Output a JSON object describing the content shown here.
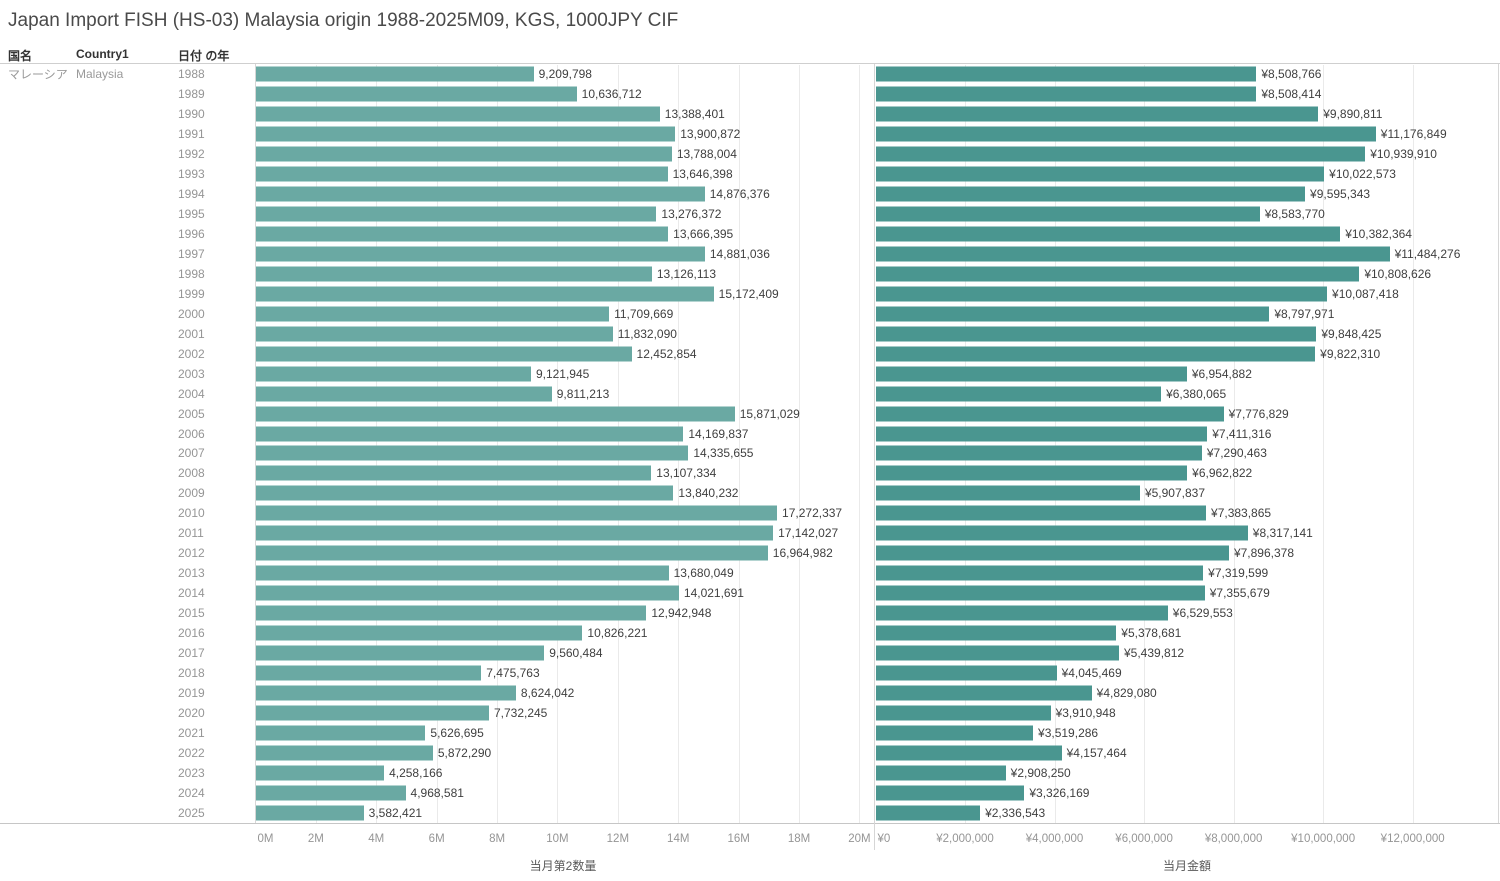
{
  "title": "Japan Import FISH (HS-03) Malaysia origin 1988-2025M09, KGS, 1000JPY CIF",
  "columns": {
    "country_jp": "国名",
    "country_en": "Country1",
    "year": "日付 の年"
  },
  "row_header": {
    "country_jp": "マレーシア",
    "country_en": "Malaysia"
  },
  "chart_data": {
    "type": "bar",
    "orientation": "horizontal",
    "grid": true,
    "categories": [
      "1988",
      "1989",
      "1990",
      "1991",
      "1992",
      "1993",
      "1994",
      "1995",
      "1996",
      "1997",
      "1998",
      "1999",
      "2000",
      "2001",
      "2002",
      "2003",
      "2004",
      "2005",
      "2006",
      "2007",
      "2008",
      "2009",
      "2010",
      "2011",
      "2012",
      "2013",
      "2014",
      "2015",
      "2016",
      "2017",
      "2018",
      "2019",
      "2020",
      "2021",
      "2022",
      "2023",
      "2024",
      "2025"
    ],
    "series": [
      {
        "name": "quantity",
        "axis_title": "当月第2数量",
        "value_prefix": "",
        "bar_color": "#6AA9A3",
        "xlim": [
          0,
          20400000
        ],
        "ticks": [
          {
            "value": 0,
            "label": "0M"
          },
          {
            "value": 2000000,
            "label": "2M"
          },
          {
            "value": 4000000,
            "label": "4M"
          },
          {
            "value": 6000000,
            "label": "6M"
          },
          {
            "value": 8000000,
            "label": "8M"
          },
          {
            "value": 10000000,
            "label": "10M"
          },
          {
            "value": 12000000,
            "label": "12M"
          },
          {
            "value": 14000000,
            "label": "14M"
          },
          {
            "value": 16000000,
            "label": "16M"
          },
          {
            "value": 18000000,
            "label": "18M"
          },
          {
            "value": 20000000,
            "label": "20M"
          }
        ],
        "values": [
          9209798,
          10636712,
          13388401,
          13900872,
          13788004,
          13646398,
          14876376,
          13276372,
          13666395,
          14881036,
          13126113,
          15172409,
          11709669,
          11832090,
          12452854,
          9121945,
          9811213,
          15871029,
          14169837,
          14335655,
          13107334,
          13840232,
          17272337,
          17142027,
          16964982,
          13680049,
          14021691,
          12942948,
          10826221,
          9560484,
          7475763,
          8624042,
          7732245,
          5626695,
          5872290,
          4258166,
          4968581,
          3582421
        ]
      },
      {
        "name": "amount",
        "axis_title": "当月金額",
        "value_prefix": "¥",
        "bar_color": "#4A9690",
        "xlim": [
          0,
          13940000
        ],
        "ticks": [
          {
            "value": 0,
            "label": "¥0"
          },
          {
            "value": 2000000,
            "label": "¥2,000,000"
          },
          {
            "value": 4000000,
            "label": "¥4,000,000"
          },
          {
            "value": 6000000,
            "label": "¥6,000,000"
          },
          {
            "value": 8000000,
            "label": "¥8,000,000"
          },
          {
            "value": 10000000,
            "label": "¥10,000,000"
          },
          {
            "value": 12000000,
            "label": "¥12,000,000"
          }
        ],
        "values": [
          8508766,
          8508414,
          9890811,
          11176849,
          10939910,
          10022573,
          9595343,
          8583770,
          10382364,
          11484276,
          10808626,
          10087418,
          8797971,
          9848425,
          9822310,
          6954882,
          6380065,
          7776829,
          7411316,
          7290463,
          6962822,
          5907837,
          7383865,
          8317141,
          7896378,
          7319599,
          7355679,
          6529553,
          5378681,
          5439812,
          4045469,
          4829080,
          3910948,
          3519286,
          4157464,
          2908250,
          3326169,
          2336543
        ]
      }
    ]
  }
}
